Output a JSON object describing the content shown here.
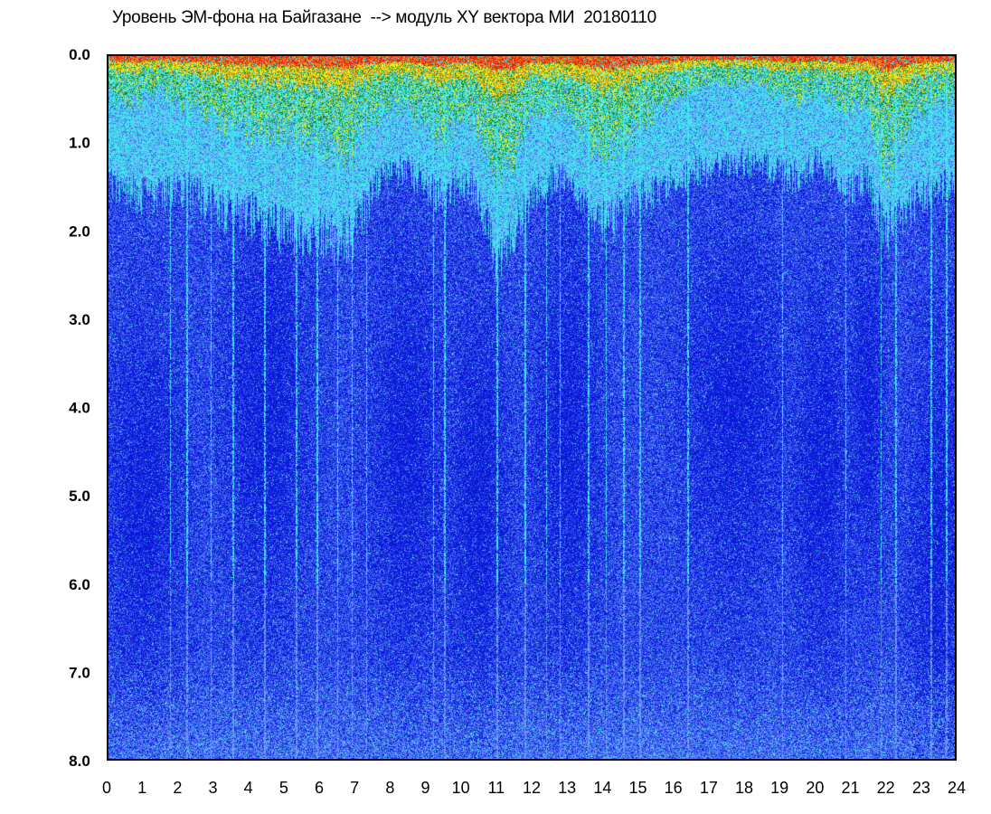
{
  "chart_data": {
    "type": "heatmap",
    "title": "Уровень ЭМ-фона на Байгазане  --> модуль XY вектора МИ  20180110",
    "xlabel": "",
    "ylabel": "",
    "x_ticks": [
      "0",
      "1",
      "2",
      "3",
      "4",
      "5",
      "6",
      "7",
      "8",
      "9",
      "10",
      "11",
      "12",
      "13",
      "14",
      "15",
      "16",
      "17",
      "18",
      "19",
      "20",
      "21",
      "22",
      "23",
      "24"
    ],
    "y_ticks": [
      "0.0",
      "1.0",
      "2.0",
      "3.0",
      "4.0",
      "5.0",
      "6.0",
      "7.0",
      "8.0"
    ],
    "xlim": [
      0,
      24
    ],
    "ylim": [
      0,
      8
    ],
    "y_inverted": true,
    "grid": false,
    "colormap": [
      "#0a1ad8",
      "#3a5cf0",
      "#6f9cf2",
      "#3fe6ee",
      "#0f8a1e",
      "#f4f412",
      "#f08a10",
      "#e81a10"
    ],
    "background_color": "#3a5cf0",
    "intensity_profile": {
      "hours": [
        0,
        0.5,
        1,
        1.5,
        2,
        2.5,
        3,
        3.5,
        4,
        4.5,
        5,
        5.5,
        6,
        6.5,
        7,
        7.5,
        8,
        8.5,
        9,
        9.5,
        10,
        10.5,
        11,
        11.5,
        12,
        12.5,
        13,
        13.5,
        14,
        14.5,
        15,
        15.5,
        16,
        16.5,
        17,
        17.5,
        18,
        18.5,
        19,
        19.5,
        20,
        20.5,
        21,
        21.5,
        22,
        22.5,
        23,
        23.5,
        24
      ],
      "hot_depth": [
        0.5,
        0.5,
        0.45,
        0.4,
        0.55,
        0.6,
        0.7,
        0.8,
        0.85,
        0.9,
        0.9,
        0.9,
        0.95,
        1.1,
        1.0,
        0.7,
        0.55,
        0.6,
        0.75,
        0.95,
        0.6,
        0.8,
        1.3,
        1.2,
        0.6,
        0.6,
        0.65,
        0.8,
        1.1,
        1.1,
        0.8,
        0.6,
        0.45,
        0.35,
        0.3,
        0.3,
        0.3,
        0.3,
        0.45,
        0.5,
        0.4,
        0.45,
        0.6,
        0.5,
        1.3,
        1.0,
        0.6,
        0.5,
        0.5
      ],
      "cyan_depth": [
        1.5,
        1.5,
        1.6,
        1.6,
        1.5,
        1.6,
        1.7,
        1.8,
        1.8,
        1.9,
        2.0,
        2.0,
        2.0,
        2.1,
        2.0,
        1.5,
        1.3,
        1.3,
        1.5,
        1.6,
        1.4,
        1.6,
        2.3,
        2.1,
        1.6,
        1.4,
        1.4,
        1.6,
        1.9,
        1.8,
        1.6,
        1.5,
        1.4,
        1.3,
        1.3,
        1.2,
        1.2,
        1.2,
        1.3,
        1.4,
        1.2,
        1.3,
        1.5,
        1.4,
        2.0,
        1.8,
        1.6,
        1.5,
        1.5
      ]
    },
    "vertical_streaks_hours": [
      1.75,
      2.2,
      2.9,
      3.5,
      4.4,
      5.3,
      5.9,
      6.5,
      6.9,
      7.3,
      9.2,
      9.5,
      11.0,
      11.8,
      12.4,
      12.8,
      13.6,
      14.1,
      14.6,
      15.05,
      16.4,
      19.1,
      20.9,
      21.9,
      22.3,
      23.3,
      23.75
    ]
  }
}
